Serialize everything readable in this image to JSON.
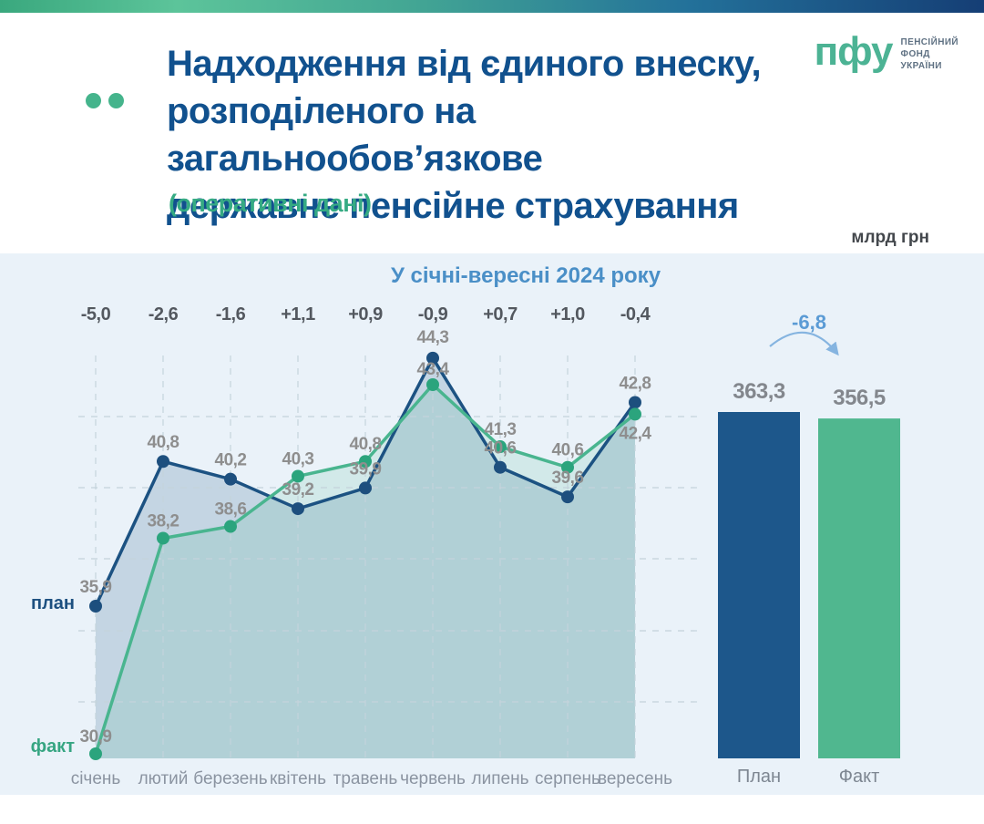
{
  "header": {
    "title_line1": "Надходження від єдиного внеску,",
    "title_line2": "розподіленого на загальнообов’язкове",
    "title_line3": "державне пенсійне страхування",
    "subtitle": "(оперативні дані)",
    "unit_label": "млрд грн",
    "logo": {
      "abbr": "пфу",
      "name_line1": "ПЕНСІЙНИЙ",
      "name_line2": "ФОНД",
      "name_line3": "УКРАЇНИ"
    }
  },
  "chart_data": {
    "type": "line",
    "title": "У січні-вересні 2024 року",
    "unit": "млрд грн",
    "categories": [
      "січень",
      "лютий",
      "березень",
      "квітень",
      "травень",
      "червень",
      "липень",
      "серпень",
      "вересень"
    ],
    "series": [
      {
        "name": "план",
        "color": "#1c5282",
        "point_color": "#1d4f7e",
        "fill_opacity": 0.18,
        "values": [
          35.9,
          40.8,
          40.2,
          39.2,
          39.9,
          44.3,
          40.6,
          39.6,
          42.8
        ]
      },
      {
        "name": "факт",
        "color": "#49b58f",
        "point_color": "#2ba47d",
        "fill_opacity": 0.15,
        "values": [
          30.9,
          38.2,
          38.6,
          40.3,
          40.8,
          43.4,
          41.3,
          40.6,
          42.4
        ]
      }
    ],
    "differences": [
      "-5,0",
      "-2,6",
      "-1,6",
      "+1,1",
      "+0,9",
      "-0,9",
      "+0,7",
      "+1,0",
      "-0,4"
    ],
    "legend": {
      "plan": "план",
      "fact": "факт"
    },
    "totals": {
      "difference": "-6,8",
      "bars": [
        {
          "label": "План",
          "value": 363.3,
          "display": "363,3",
          "color": "#1d578b"
        },
        {
          "label": "Факт",
          "value": 356.5,
          "display": "356,5",
          "color": "#50b78f"
        }
      ]
    },
    "layout_hints": {
      "grid": "dashed",
      "legend_position": "left-of-first-points",
      "value_labels": "on"
    }
  }
}
